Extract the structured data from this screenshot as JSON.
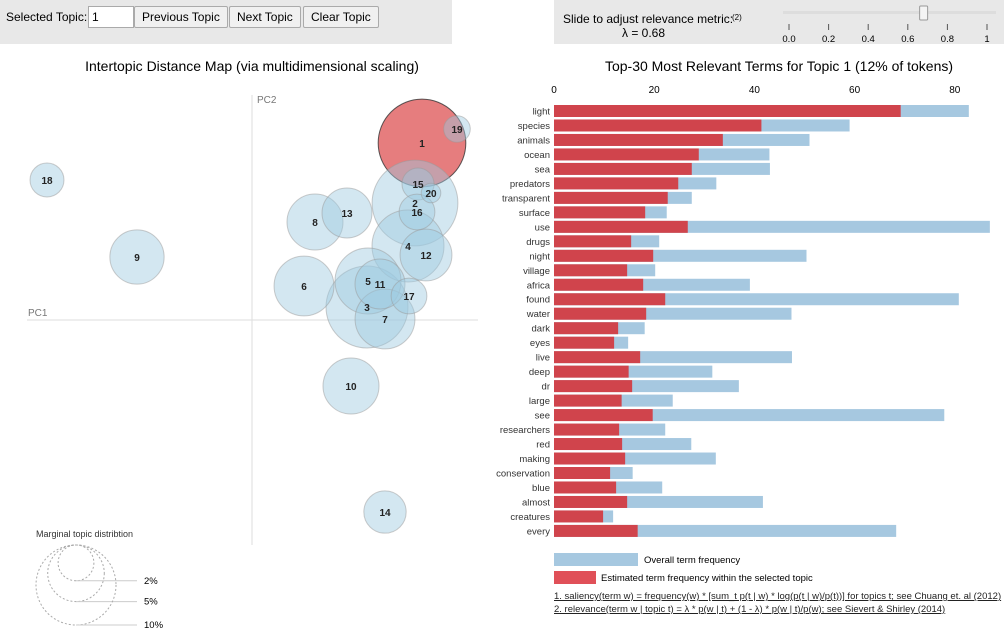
{
  "controls": {
    "selected_topic_label": "Selected Topic:",
    "selected_topic_value": "1",
    "previous_label": "Previous Topic",
    "next_label": "Next Topic",
    "clear_label": "Clear Topic",
    "slider_label": "Slide to adjust relevance metric:",
    "slider_footnote": "(2)",
    "lambda_text": "λ = 0.68",
    "lambda_value": 0.68,
    "slider_ticks": [
      "0.0",
      "0.2",
      "0.4",
      "0.6",
      "0.8",
      "1"
    ]
  },
  "colors": {
    "selected": "#d62728",
    "bar_red": "#d0444c",
    "bar_blue": "#a6c8e0",
    "circle": "#9ecae1"
  },
  "chart_data": [
    {
      "type": "scatter",
      "title": "Intertopic Distance Map (via multidimensional scaling)",
      "xlabel": "PC1",
      "ylabel": "PC2",
      "selected_topic": 1,
      "size_legend": {
        "title": "Marginal topic distribtion",
        "labels": [
          "2%",
          "5%",
          "10%"
        ],
        "values": [
          2,
          5,
          10
        ]
      },
      "topics": [
        {
          "id": "1",
          "pc1": 0.17,
          "pc2": 0.177,
          "pct": 12
        },
        {
          "id": "2",
          "pc1": 0.163,
          "pc2": 0.117,
          "pct": 11.5
        },
        {
          "id": "3",
          "pc1": 0.115,
          "pc2": 0.013,
          "pct": 10.5
        },
        {
          "id": "4",
          "pc1": 0.156,
          "pc2": 0.074,
          "pct": 8.1
        },
        {
          "id": "5",
          "pc1": 0.116,
          "pc2": 0.039,
          "pct": 6.8
        },
        {
          "id": "6",
          "pc1": 0.052,
          "pc2": 0.034,
          "pct": 5.6
        },
        {
          "id": "7",
          "pc1": 0.133,
          "pc2": 0.001,
          "pct": 5.6
        },
        {
          "id": "8",
          "pc1": 0.063,
          "pc2": 0.098,
          "pct": 4.9
        },
        {
          "id": "9",
          "pc1": -0.115,
          "pc2": 0.063,
          "pct": 4.6
        },
        {
          "id": "10",
          "pc1": 0.099,
          "pc2": -0.066,
          "pct": 4.9
        },
        {
          "id": "11",
          "pc1": 0.128,
          "pc2": 0.036,
          "pct": 3.9
        },
        {
          "id": "12",
          "pc1": 0.174,
          "pc2": 0.065,
          "pct": 4.2
        },
        {
          "id": "13",
          "pc1": 0.095,
          "pc2": 0.107,
          "pct": 3.9
        },
        {
          "id": "14",
          "pc1": 0.133,
          "pc2": -0.192,
          "pct": 2.8
        },
        {
          "id": "15",
          "pc1": 0.166,
          "pc2": 0.136,
          "pct": 1.6
        },
        {
          "id": "16",
          "pc1": 0.165,
          "pc2": 0.108,
          "pct": 2.0
        },
        {
          "id": "17",
          "pc1": 0.157,
          "pc2": 0.024,
          "pct": 2.0
        },
        {
          "id": "18",
          "pc1": -0.205,
          "pc2": 0.14,
          "pct": 1.8
        },
        {
          "id": "19",
          "pc1": 0.205,
          "pc2": 0.191,
          "pct": 1.1
        },
        {
          "id": "20",
          "pc1": 0.179,
          "pc2": 0.127,
          "pct": 0.6
        }
      ]
    },
    {
      "type": "bar",
      "title": "Top-30 Most Relevant Terms for Topic 1 (12% of tokens)",
      "xlim": [
        0,
        88
      ],
      "x_ticks": [
        0,
        20,
        40,
        60,
        80
      ],
      "categories": [
        "light",
        "species",
        "animals",
        "ocean",
        "sea",
        "predators",
        "transparent",
        "surface",
        "use",
        "drugs",
        "night",
        "village",
        "africa",
        "found",
        "water",
        "dark",
        "eyes",
        "live",
        "deep",
        "dr",
        "large",
        "see",
        "researchers",
        "red",
        "making",
        "conservation",
        "blue",
        "almost",
        "creatures",
        "every"
      ],
      "series": [
        {
          "name": "Overall term frequency",
          "values": [
            82.8,
            59.0,
            51.0,
            43.0,
            43.1,
            32.4,
            27.5,
            22.5,
            87.0,
            21.0,
            50.4,
            20.2,
            39.1,
            80.8,
            47.4,
            18.1,
            14.8,
            47.5,
            31.6,
            36.9,
            23.7,
            77.9,
            22.2,
            27.4,
            32.3,
            15.7,
            21.6,
            41.7,
            11.8,
            68.3
          ]
        },
        {
          "name": "Estimated term frequency within the selected topic",
          "values": [
            69.2,
            41.4,
            33.7,
            28.9,
            27.5,
            24.8,
            22.7,
            18.2,
            26.7,
            15.4,
            19.8,
            14.6,
            17.8,
            22.2,
            18.4,
            12.8,
            12.0,
            17.2,
            14.9,
            15.6,
            13.5,
            19.7,
            13.0,
            13.6,
            14.2,
            11.2,
            12.4,
            14.6,
            9.8,
            16.7
          ]
        }
      ]
    }
  ],
  "footnotes": [
    "1. saliency(term w) = frequency(w) * [sum_t p(t | w) * log(p(t | w)/p(t))] for topics t; see Chuang et. al (2012)",
    "2. relevance(term w | topic t) = λ * p(w | t) + (1 - λ) * p(w | t)/p(w); see Sievert & Shirley (2014)"
  ]
}
